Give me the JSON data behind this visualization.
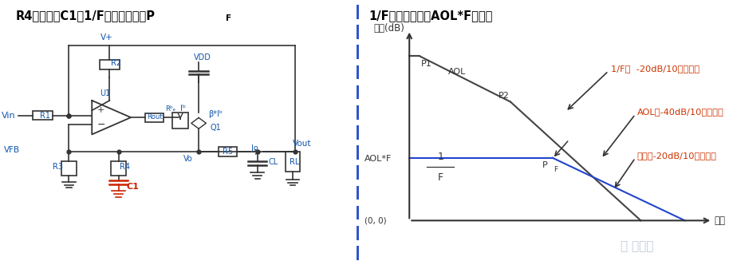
{
  "left_title_main": "R4并联电容C1，1/F曲线产生极点P",
  "left_title_sub": "F",
  "right_title": "1/F曲线修正后的AOL*F波特图",
  "annotation_1f": "1/F：  -20dB/10倍频衰减",
  "annotation_aol": "AOL：-40dB/10倍频衰减",
  "annotation_cross": "交点：-20dB/10倍频衰减",
  "annotation_color": "#cc3300",
  "divider_color": "#3355cc",
  "title_color": "#000000",
  "bg_color": "#ffffff",
  "circuit_color": "#333333",
  "label_color": "#1155aa",
  "red_color": "#cc2200",
  "blue_line_color": "#2244cc",
  "watermark_color": "#aabbcc"
}
